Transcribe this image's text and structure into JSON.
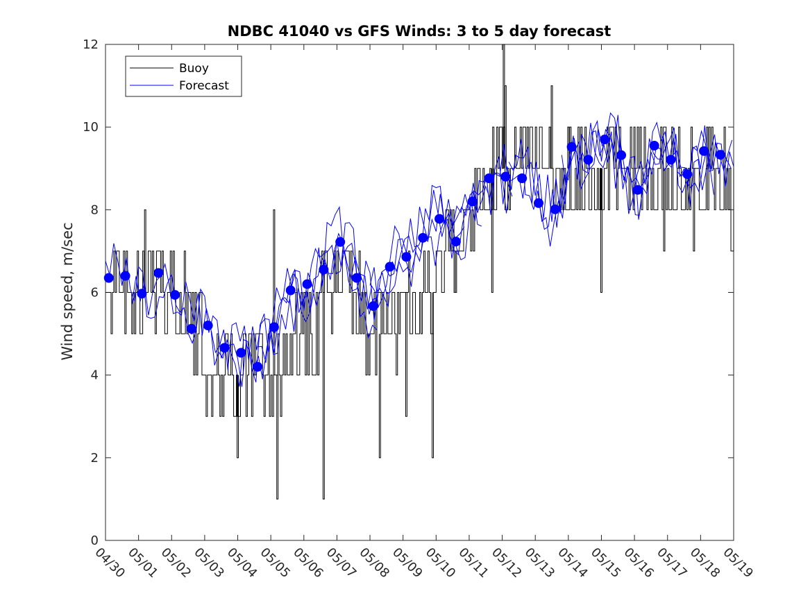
{
  "chart_data": {
    "type": "line",
    "title": "NDBC 41040 vs GFS Winds: 3 to 5 day forecast",
    "xlabel": "",
    "ylabel": "Wind speed, m/sec",
    "ylim": [
      0,
      12
    ],
    "yticks": [
      0,
      2,
      4,
      6,
      8,
      10,
      12
    ],
    "x_range_days": [
      0,
      19
    ],
    "x_tick_labels": [
      "04/30",
      "05/01",
      "05/02",
      "05/03",
      "05/04",
      "05/05",
      "05/06",
      "05/07",
      "05/08",
      "05/09",
      "05/10",
      "05/11",
      "05/12",
      "05/13",
      "05/14",
      "05/15",
      "05/16",
      "05/17",
      "05/18",
      "05/19"
    ],
    "legend": {
      "position": "top-left",
      "entries": [
        "Buoy",
        "Forecast"
      ]
    },
    "colors": {
      "buoy": "#000000",
      "forecast": "#0000ff"
    },
    "buoy_trend": [
      [
        0.0,
        6.5
      ],
      [
        0.5,
        6.5
      ],
      [
        1.0,
        6.0
      ],
      [
        1.5,
        6.5
      ],
      [
        2.0,
        6.0
      ],
      [
        2.5,
        5.5
      ],
      [
        3.0,
        4.5
      ],
      [
        3.5,
        4.2
      ],
      [
        4.0,
        4.0
      ],
      [
        4.5,
        4.4
      ],
      [
        5.0,
        4.0
      ],
      [
        5.5,
        4.5
      ],
      [
        6.0,
        4.8
      ],
      [
        6.5,
        5.5
      ],
      [
        7.0,
        6.5
      ],
      [
        7.5,
        6.0
      ],
      [
        8.0,
        4.8
      ],
      [
        8.5,
        5.5
      ],
      [
        9.0,
        5.5
      ],
      [
        9.5,
        5.5
      ],
      [
        10.0,
        6.5
      ],
      [
        10.5,
        7.2
      ],
      [
        11.0,
        7.5
      ],
      [
        11.5,
        8.5
      ],
      [
        12.0,
        9.2
      ],
      [
        12.5,
        9.0
      ],
      [
        13.0,
        9.3
      ],
      [
        13.5,
        8.8
      ],
      [
        14.0,
        8.8
      ],
      [
        14.5,
        8.8
      ],
      [
        15.0,
        8.8
      ],
      [
        15.5,
        9.0
      ],
      [
        16.0,
        9.2
      ],
      [
        16.5,
        9.2
      ],
      [
        17.0,
        8.8
      ],
      [
        17.5,
        8.7
      ],
      [
        18.0,
        8.8
      ],
      [
        18.5,
        8.7
      ],
      [
        19.0,
        8.5
      ]
    ],
    "buoy_spikes": [
      {
        "x": 1.2,
        "y": 8.0
      },
      {
        "x": 2.4,
        "y": 7.0
      },
      {
        "x": 4.0,
        "y": 2.0
      },
      {
        "x": 5.1,
        "y": 8.0
      },
      {
        "x": 5.2,
        "y": 1.0
      },
      {
        "x": 6.6,
        "y": 1.0
      },
      {
        "x": 8.3,
        "y": 2.0
      },
      {
        "x": 9.1,
        "y": 3.0
      },
      {
        "x": 9.9,
        "y": 2.0
      },
      {
        "x": 10.6,
        "y": 6.0
      },
      {
        "x": 11.7,
        "y": 6.0
      },
      {
        "x": 12.05,
        "y": 12.0
      },
      {
        "x": 12.1,
        "y": 11.0
      },
      {
        "x": 13.5,
        "y": 11.0
      },
      {
        "x": 14.0,
        "y": 10.0
      },
      {
        "x": 15.0,
        "y": 6.0
      },
      {
        "x": 16.0,
        "y": 10.0
      },
      {
        "x": 16.9,
        "y": 7.0
      },
      {
        "x": 17.8,
        "y": 7.0
      },
      {
        "x": 18.2,
        "y": 10.0
      }
    ],
    "forecast_points": [
      {
        "x": 0.1,
        "y": 6.35
      },
      {
        "x": 0.6,
        "y": 6.4
      },
      {
        "x": 1.1,
        "y": 5.97
      },
      {
        "x": 1.6,
        "y": 6.47
      },
      {
        "x": 2.1,
        "y": 5.94
      },
      {
        "x": 2.6,
        "y": 5.12
      },
      {
        "x": 3.1,
        "y": 5.2
      },
      {
        "x": 3.6,
        "y": 4.66
      },
      {
        "x": 4.1,
        "y": 4.54
      },
      {
        "x": 4.6,
        "y": 4.2
      },
      {
        "x": 5.1,
        "y": 5.16
      },
      {
        "x": 5.6,
        "y": 6.05
      },
      {
        "x": 6.1,
        "y": 6.2
      },
      {
        "x": 6.6,
        "y": 6.55
      },
      {
        "x": 7.1,
        "y": 7.22
      },
      {
        "x": 7.6,
        "y": 6.35
      },
      {
        "x": 8.1,
        "y": 5.67
      },
      {
        "x": 8.6,
        "y": 6.62
      },
      {
        "x": 9.1,
        "y": 6.86
      },
      {
        "x": 9.6,
        "y": 7.32
      },
      {
        "x": 10.1,
        "y": 7.78
      },
      {
        "x": 10.6,
        "y": 7.23
      },
      {
        "x": 11.1,
        "y": 8.2
      },
      {
        "x": 11.6,
        "y": 8.76
      },
      {
        "x": 12.1,
        "y": 8.8
      },
      {
        "x": 12.6,
        "y": 8.76
      },
      {
        "x": 13.1,
        "y": 8.16
      },
      {
        "x": 13.6,
        "y": 8.01
      },
      {
        "x": 14.1,
        "y": 9.52
      },
      {
        "x": 14.6,
        "y": 9.21
      },
      {
        "x": 15.1,
        "y": 9.7
      },
      {
        "x": 15.6,
        "y": 9.32
      },
      {
        "x": 16.1,
        "y": 8.48
      },
      {
        "x": 16.6,
        "y": 9.55
      },
      {
        "x": 17.1,
        "y": 9.21
      },
      {
        "x": 17.6,
        "y": 8.86
      },
      {
        "x": 18.1,
        "y": 9.42
      },
      {
        "x": 18.6,
        "y": 9.33
      }
    ]
  }
}
